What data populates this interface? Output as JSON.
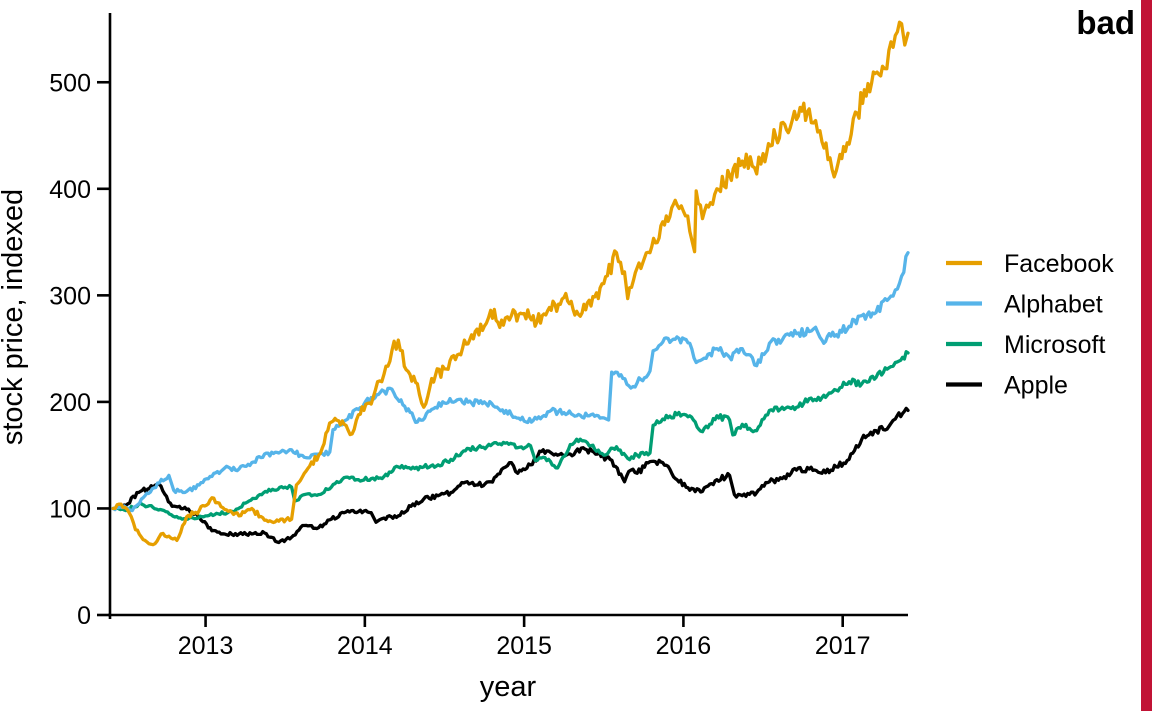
{
  "annotation": {
    "label": "bad",
    "color": "#C11335"
  },
  "chart_data": {
    "type": "line",
    "title": "",
    "xlabel": "year",
    "ylabel": "stock price, indexed",
    "x_ticks": [
      2013,
      2014,
      2015,
      2016,
      2017
    ],
    "y_ticks": [
      0,
      100,
      200,
      300,
      400,
      500
    ],
    "xlim": [
      2012.4,
      2017.41
    ],
    "ylim": [
      0,
      565
    ],
    "grid": false,
    "legend_position": "right-outside",
    "series": [
      {
        "name": "Facebook",
        "color": "#E69F00",
        "points": [
          [
            2012.42,
            100
          ],
          [
            2012.47,
            104
          ],
          [
            2012.52,
            96
          ],
          [
            2012.56,
            80
          ],
          [
            2012.62,
            70
          ],
          [
            2012.67,
            66
          ],
          [
            2012.72,
            76
          ],
          [
            2012.77,
            74
          ],
          [
            2012.82,
            70
          ],
          [
            2012.88,
            92
          ],
          [
            2012.96,
            98
          ],
          [
            2013.04,
            110
          ],
          [
            2013.12,
            99
          ],
          [
            2013.21,
            93
          ],
          [
            2013.29,
            100
          ],
          [
            2013.37,
            89
          ],
          [
            2013.46,
            88
          ],
          [
            2013.54,
            90
          ],
          [
            2013.57,
            122
          ],
          [
            2013.62,
            133
          ],
          [
            2013.71,
            150
          ],
          [
            2013.79,
            181
          ],
          [
            2013.87,
            179
          ],
          [
            2013.92,
            170
          ],
          [
            2013.96,
            188
          ],
          [
            2014.04,
            198
          ],
          [
            2014.08,
            219
          ],
          [
            2014.12,
            226
          ],
          [
            2014.17,
            248
          ],
          [
            2014.21,
            258
          ],
          [
            2014.26,
            230
          ],
          [
            2014.33,
            217
          ],
          [
            2014.37,
            195
          ],
          [
            2014.42,
            222
          ],
          [
            2014.5,
            231
          ],
          [
            2014.58,
            244
          ],
          [
            2014.67,
            263
          ],
          [
            2014.75,
            271
          ],
          [
            2014.79,
            286
          ],
          [
            2014.87,
            272
          ],
          [
            2014.92,
            281
          ],
          [
            2015.0,
            283
          ],
          [
            2015.08,
            275
          ],
          [
            2015.17,
            286
          ],
          [
            2015.25,
            298
          ],
          [
            2015.33,
            285
          ],
          [
            2015.42,
            290
          ],
          [
            2015.5,
            311
          ],
          [
            2015.58,
            340
          ],
          [
            2015.63,
            322
          ],
          [
            2015.65,
            297
          ],
          [
            2015.71,
            326
          ],
          [
            2015.79,
            340
          ],
          [
            2015.87,
            369
          ],
          [
            2015.96,
            385
          ],
          [
            2016.0,
            379
          ],
          [
            2016.04,
            360
          ],
          [
            2016.07,
            341
          ],
          [
            2016.08,
            398
          ],
          [
            2016.12,
            372
          ],
          [
            2016.17,
            387
          ],
          [
            2016.21,
            400
          ],
          [
            2016.29,
            413
          ],
          [
            2016.37,
            426
          ],
          [
            2016.42,
            430
          ],
          [
            2016.46,
            414
          ],
          [
            2016.5,
            433
          ],
          [
            2016.58,
            449
          ],
          [
            2016.67,
            457
          ],
          [
            2016.71,
            465
          ],
          [
            2016.79,
            475
          ],
          [
            2016.83,
            464
          ],
          [
            2016.87,
            444
          ],
          [
            2016.92,
            429
          ],
          [
            2016.96,
            417
          ],
          [
            2017.04,
            442
          ],
          [
            2017.08,
            472
          ],
          [
            2017.17,
            491
          ],
          [
            2017.25,
            515
          ],
          [
            2017.29,
            530
          ],
          [
            2017.33,
            544
          ],
          [
            2017.37,
            555
          ],
          [
            2017.39,
            535
          ],
          [
            2017.41,
            546
          ]
        ]
      },
      {
        "name": "Alphabet",
        "color": "#56B4E9",
        "points": [
          [
            2012.42,
            100
          ],
          [
            2012.5,
            101
          ],
          [
            2012.54,
            98
          ],
          [
            2012.62,
            112
          ],
          [
            2012.71,
            124
          ],
          [
            2012.77,
            131
          ],
          [
            2012.8,
            117
          ],
          [
            2012.87,
            115
          ],
          [
            2012.96,
            122
          ],
          [
            2013.04,
            130
          ],
          [
            2013.12,
            138
          ],
          [
            2013.21,
            137
          ],
          [
            2013.29,
            143
          ],
          [
            2013.37,
            151
          ],
          [
            2013.46,
            152
          ],
          [
            2013.54,
            155
          ],
          [
            2013.62,
            148
          ],
          [
            2013.71,
            151
          ],
          [
            2013.78,
            153
          ],
          [
            2013.8,
            174
          ],
          [
            2013.87,
            182
          ],
          [
            2013.96,
            193
          ],
          [
            2014.04,
            204
          ],
          [
            2014.12,
            210
          ],
          [
            2014.17,
            212
          ],
          [
            2014.25,
            196
          ],
          [
            2014.33,
            181
          ],
          [
            2014.42,
            193
          ],
          [
            2014.5,
            199
          ],
          [
            2014.58,
            202
          ],
          [
            2014.67,
            199
          ],
          [
            2014.75,
            200
          ],
          [
            2014.83,
            195
          ],
          [
            2014.92,
            188
          ],
          [
            2015.0,
            182
          ],
          [
            2015.08,
            184
          ],
          [
            2015.17,
            192
          ],
          [
            2015.25,
            190
          ],
          [
            2015.33,
            187
          ],
          [
            2015.42,
            188
          ],
          [
            2015.5,
            185
          ],
          [
            2015.53,
            183
          ],
          [
            2015.55,
            228
          ],
          [
            2015.62,
            222
          ],
          [
            2015.67,
            213
          ],
          [
            2015.71,
            218
          ],
          [
            2015.79,
            229
          ],
          [
            2015.81,
            248
          ],
          [
            2015.87,
            256
          ],
          [
            2015.96,
            261
          ],
          [
            2016.04,
            255
          ],
          [
            2016.08,
            237
          ],
          [
            2016.12,
            240
          ],
          [
            2016.21,
            250
          ],
          [
            2016.29,
            242
          ],
          [
            2016.37,
            250
          ],
          [
            2016.42,
            244
          ],
          [
            2016.46,
            234
          ],
          [
            2016.54,
            255
          ],
          [
            2016.62,
            258
          ],
          [
            2016.71,
            264
          ],
          [
            2016.79,
            266
          ],
          [
            2016.83,
            270
          ],
          [
            2016.87,
            258
          ],
          [
            2016.96,
            263
          ],
          [
            2017.04,
            271
          ],
          [
            2017.12,
            281
          ],
          [
            2017.21,
            284
          ],
          [
            2017.29,
            297
          ],
          [
            2017.33,
            305
          ],
          [
            2017.37,
            318
          ],
          [
            2017.41,
            340
          ]
        ]
      },
      {
        "name": "Microsoft",
        "color": "#009E73",
        "points": [
          [
            2012.42,
            100
          ],
          [
            2012.5,
            98
          ],
          [
            2012.58,
            104
          ],
          [
            2012.67,
            101
          ],
          [
            2012.75,
            97
          ],
          [
            2012.83,
            91
          ],
          [
            2012.92,
            91
          ],
          [
            2013.0,
            93
          ],
          [
            2013.08,
            95
          ],
          [
            2013.17,
            97
          ],
          [
            2013.25,
            105
          ],
          [
            2013.33,
            112
          ],
          [
            2013.42,
            118
          ],
          [
            2013.5,
            120
          ],
          [
            2013.54,
            120
          ],
          [
            2013.56,
            107
          ],
          [
            2013.62,
            113
          ],
          [
            2013.71,
            113
          ],
          [
            2013.79,
            120
          ],
          [
            2013.87,
            129
          ],
          [
            2013.96,
            127
          ],
          [
            2014.04,
            128
          ],
          [
            2014.12,
            130
          ],
          [
            2014.21,
            139
          ],
          [
            2014.29,
            137
          ],
          [
            2014.37,
            139
          ],
          [
            2014.46,
            141
          ],
          [
            2014.54,
            146
          ],
          [
            2014.62,
            154
          ],
          [
            2014.71,
            157
          ],
          [
            2014.79,
            159
          ],
          [
            2014.87,
            162
          ],
          [
            2014.96,
            157
          ],
          [
            2015.04,
            159
          ],
          [
            2015.07,
            145
          ],
          [
            2015.12,
            148
          ],
          [
            2015.21,
            138
          ],
          [
            2015.29,
            160
          ],
          [
            2015.33,
            165
          ],
          [
            2015.42,
            159
          ],
          [
            2015.5,
            150
          ],
          [
            2015.58,
            158
          ],
          [
            2015.65,
            147
          ],
          [
            2015.71,
            150
          ],
          [
            2015.79,
            152
          ],
          [
            2015.81,
            178
          ],
          [
            2015.87,
            184
          ],
          [
            2015.96,
            188
          ],
          [
            2016.04,
            187
          ],
          [
            2016.12,
            172
          ],
          [
            2016.21,
            187
          ],
          [
            2016.29,
            183
          ],
          [
            2016.31,
            169
          ],
          [
            2016.37,
            179
          ],
          [
            2016.46,
            173
          ],
          [
            2016.54,
            192
          ],
          [
            2016.62,
            195
          ],
          [
            2016.71,
            195
          ],
          [
            2016.79,
            203
          ],
          [
            2016.87,
            204
          ],
          [
            2016.96,
            211
          ],
          [
            2017.04,
            219
          ],
          [
            2017.12,
            217
          ],
          [
            2017.21,
            223
          ],
          [
            2017.29,
            232
          ],
          [
            2017.33,
            237
          ],
          [
            2017.41,
            246
          ]
        ]
      },
      {
        "name": "Apple",
        "color": "#000000",
        "points": [
          [
            2012.42,
            100
          ],
          [
            2012.5,
            103
          ],
          [
            2012.58,
            115
          ],
          [
            2012.67,
            120
          ],
          [
            2012.72,
            121
          ],
          [
            2012.79,
            102
          ],
          [
            2012.87,
            101
          ],
          [
            2012.96,
            92
          ],
          [
            2013.04,
            79
          ],
          [
            2013.12,
            76
          ],
          [
            2013.21,
            76
          ],
          [
            2013.29,
            76
          ],
          [
            2013.37,
            77
          ],
          [
            2013.46,
            68
          ],
          [
            2013.54,
            73
          ],
          [
            2013.62,
            84
          ],
          [
            2013.71,
            82
          ],
          [
            2013.79,
            90
          ],
          [
            2013.87,
            96
          ],
          [
            2013.96,
            97
          ],
          [
            2014.04,
            96
          ],
          [
            2014.07,
            87
          ],
          [
            2014.12,
            91
          ],
          [
            2014.21,
            93
          ],
          [
            2014.29,
            102
          ],
          [
            2014.37,
            109
          ],
          [
            2014.46,
            112
          ],
          [
            2014.54,
            115
          ],
          [
            2014.62,
            124
          ],
          [
            2014.71,
            122
          ],
          [
            2014.79,
            125
          ],
          [
            2014.87,
            138
          ],
          [
            2014.92,
            143
          ],
          [
            2014.96,
            133
          ],
          [
            2015.04,
            141
          ],
          [
            2015.12,
            155
          ],
          [
            2015.21,
            150
          ],
          [
            2015.29,
            151
          ],
          [
            2015.37,
            157
          ],
          [
            2015.46,
            151
          ],
          [
            2015.54,
            146
          ],
          [
            2015.63,
            125
          ],
          [
            2015.67,
            136
          ],
          [
            2015.71,
            133
          ],
          [
            2015.79,
            144
          ],
          [
            2015.87,
            143
          ],
          [
            2015.96,
            127
          ],
          [
            2016.04,
            117
          ],
          [
            2016.12,
            116
          ],
          [
            2016.21,
            127
          ],
          [
            2016.29,
            131
          ],
          [
            2016.32,
            113
          ],
          [
            2016.37,
            112
          ],
          [
            2016.46,
            115
          ],
          [
            2016.54,
            125
          ],
          [
            2016.62,
            128
          ],
          [
            2016.71,
            136
          ],
          [
            2016.79,
            137
          ],
          [
            2016.87,
            133
          ],
          [
            2016.96,
            139
          ],
          [
            2017.04,
            146
          ],
          [
            2017.12,
            165
          ],
          [
            2017.21,
            173
          ],
          [
            2017.29,
            177
          ],
          [
            2017.33,
            184
          ],
          [
            2017.41,
            192
          ]
        ]
      }
    ]
  }
}
